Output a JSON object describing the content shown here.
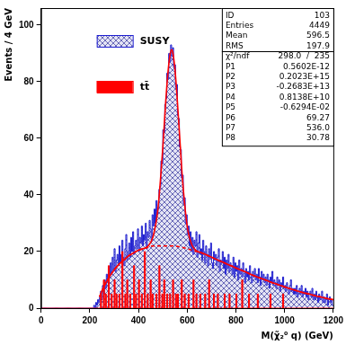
{
  "chart_data": {
    "type": "histogram",
    "x_label": "M(χ̃₂⁰ q) (GeV)",
    "y_label": "Events / 4 GeV",
    "xlim": [
      0,
      1200
    ],
    "xticks": [
      0,
      200,
      400,
      600,
      800,
      1000,
      1200
    ],
    "ylim": [
      0,
      106
    ],
    "yticks": [
      0,
      20,
      40,
      60,
      80,
      100
    ],
    "grid": false,
    "legend": "upper left",
    "bins": [
      0,
      4,
      8,
      12,
      16,
      20,
      24,
      28,
      32,
      36,
      40,
      44,
      48,
      52,
      56,
      60,
      64,
      68,
      72,
      76,
      80,
      84,
      88,
      92,
      96,
      100,
      104,
      108,
      112,
      116,
      120,
      124,
      128,
      132,
      136,
      140,
      144,
      148,
      152,
      156,
      160,
      164,
      168,
      172,
      176,
      180,
      184,
      188,
      192,
      196,
      200,
      204,
      208,
      212,
      216,
      220,
      224,
      228,
      232,
      236,
      240,
      244,
      248,
      252,
      256,
      260,
      264,
      268,
      272,
      276,
      280,
      284,
      288,
      292,
      296,
      300,
      304,
      308,
      312,
      316,
      320,
      324,
      328,
      332,
      336,
      340,
      344,
      348,
      352,
      356,
      360,
      364,
      368,
      372,
      376,
      380,
      384,
      388,
      392,
      396,
      400,
      404,
      408,
      412,
      416,
      420,
      424,
      428,
      432,
      436,
      440,
      444,
      448,
      452,
      456,
      460,
      464,
      468,
      472,
      476,
      480,
      484,
      488,
      492,
      496,
      500,
      504,
      508,
      512,
      516,
      520,
      524,
      528,
      532,
      536,
      540,
      544,
      548,
      552,
      556,
      560,
      564,
      568,
      572,
      576,
      580,
      584,
      588,
      592,
      596,
      600,
      604,
      608,
      612,
      616,
      620,
      624,
      628,
      632,
      636,
      640,
      644,
      648,
      652,
      656,
      660,
      664,
      668,
      672,
      676,
      680,
      684,
      688,
      692,
      696,
      700,
      704,
      708,
      712,
      716,
      720,
      724,
      728,
      732,
      736,
      740,
      744,
      748,
      752,
      756,
      760,
      764,
      768,
      772,
      776,
      780,
      784,
      788,
      792,
      796,
      800,
      804,
      808,
      812,
      816,
      820,
      824,
      828,
      832,
      836,
      840,
      844,
      848,
      852,
      856,
      860,
      864,
      868,
      872,
      876,
      880,
      884,
      888,
      892,
      896,
      900,
      904,
      908,
      912,
      916,
      920,
      924,
      928,
      932,
      936,
      940,
      944,
      948,
      952,
      956,
      960,
      964,
      968,
      972,
      976,
      980,
      984,
      988,
      992,
      996,
      1000,
      1004,
      1008,
      1012,
      1016,
      1020,
      1024,
      1028,
      1032,
      1036,
      1040,
      1044,
      1048,
      1052,
      1056,
      1060,
      1064,
      1068,
      1072,
      1076,
      1080,
      1084,
      1088,
      1092,
      1096,
      1100,
      1104,
      1108,
      1112,
      1116,
      1120,
      1124,
      1128,
      1132,
      1136,
      1140,
      1144,
      1148,
      1152,
      1156,
      1160,
      1164,
      1168,
      1172,
      1176,
      1180,
      1184,
      1188,
      1192,
      1196,
      1200
    ],
    "series": [
      {
        "name": "SUSY",
        "type": "histogram",
        "color": "#1f1fd0",
        "values": [
          0,
          0,
          0,
          0,
          0,
          0,
          0,
          0,
          0,
          0,
          0,
          0,
          0,
          0,
          0,
          0,
          0,
          0,
          0,
          0,
          0,
          0,
          0,
          0,
          0,
          0,
          0,
          0,
          0,
          0,
          0,
          0,
          0,
          0,
          0,
          0,
          0,
          0,
          0,
          0,
          0,
          0,
          0,
          0,
          0,
          0,
          0,
          0,
          0,
          0,
          0,
          0,
          0,
          0,
          1,
          0,
          2,
          1,
          3,
          2,
          4,
          6,
          3,
          8,
          5,
          10,
          7,
          12,
          9,
          14,
          11,
          16,
          12,
          18,
          14,
          21,
          13,
          17,
          19,
          15,
          22,
          16,
          19,
          24,
          18,
          15,
          21,
          26,
          17,
          20,
          23,
          18,
          25,
          20,
          27,
          19,
          22,
          24,
          21,
          28,
          20,
          25,
          23,
          29,
          22,
          26,
          24,
          30,
          21,
          27,
          25,
          31,
          28,
          24,
          33,
          29,
          35,
          30,
          38,
          33,
          35,
          42,
          43,
          52,
          51,
          63,
          62,
          72,
          74,
          83,
          81,
          90,
          87,
          93,
          89,
          92,
          85,
          86,
          78,
          79,
          68,
          67,
          57,
          56,
          46,
          47,
          37,
          39,
          30,
          33,
          26,
          29,
          22,
          27,
          20,
          25,
          19,
          24,
          22,
          27,
          18,
          23,
          26,
          19,
          21,
          17,
          24,
          20,
          16,
          22,
          19,
          15,
          21,
          18,
          23,
          16,
          14,
          20,
          17,
          19,
          15,
          18,
          21,
          13,
          17,
          16,
          20,
          14,
          18,
          12,
          17,
          14,
          19,
          13,
          16,
          15,
          12,
          18,
          11,
          16,
          13,
          15,
          10,
          17,
          12,
          14,
          11,
          16,
          13,
          9,
          14,
          11,
          13,
          10,
          15,
          12,
          9,
          13,
          11,
          14,
          10,
          12,
          9,
          14,
          11,
          8,
          13,
          10,
          12,
          9,
          11,
          8,
          12,
          10,
          7,
          11,
          9,
          13,
          8,
          10,
          9,
          7,
          11,
          8,
          10,
          6,
          9,
          8,
          11,
          7,
          8,
          6,
          9,
          7,
          5,
          8,
          10,
          6,
          7,
          5,
          7,
          5,
          8,
          4,
          6,
          7,
          5,
          8,
          4,
          6,
          5,
          7,
          4,
          6,
          3,
          5,
          6,
          4,
          7,
          3,
          5,
          3,
          6,
          4,
          2,
          5,
          3,
          4,
          6,
          2,
          4,
          2,
          3,
          5,
          1,
          3,
          4,
          2,
          3,
          1
        ]
      },
      {
        "name": "tt̄",
        "type": "histogram",
        "color": "#ff0000",
        "values": [
          0,
          0,
          0,
          0,
          0,
          0,
          0,
          0,
          0,
          0,
          0,
          0,
          0,
          0,
          0,
          0,
          0,
          0,
          0,
          0,
          0,
          0,
          0,
          0,
          0,
          0,
          0,
          0,
          0,
          0,
          0,
          0,
          0,
          0,
          0,
          0,
          0,
          0,
          0,
          0,
          0,
          0,
          0,
          0,
          0,
          0,
          0,
          0,
          0,
          0,
          0,
          0,
          0,
          0,
          0,
          0,
          0,
          0,
          0,
          0,
          0,
          5,
          0,
          0,
          10,
          0,
          5,
          0,
          0,
          15,
          0,
          0,
          5,
          0,
          0,
          10,
          0,
          5,
          0,
          0,
          5,
          0,
          0,
          20,
          0,
          0,
          5,
          0,
          10,
          0,
          0,
          5,
          0,
          0,
          0,
          15,
          0,
          5,
          0,
          0,
          10,
          0,
          0,
          5,
          0,
          0,
          20,
          0,
          0,
          5,
          0,
          0,
          10,
          0,
          5,
          0,
          0,
          0,
          5,
          0,
          0,
          15,
          0,
          0,
          5,
          0,
          10,
          0,
          0,
          5,
          0,
          0,
          5,
          0,
          0,
          10,
          0,
          0,
          5,
          0,
          5,
          0,
          0,
          0,
          10,
          0,
          0,
          5,
          0,
          0,
          0,
          5,
          0,
          0,
          0,
          0,
          10,
          0,
          0,
          5,
          0,
          0,
          0,
          5,
          0,
          0,
          0,
          0,
          5,
          0,
          0,
          0,
          10,
          0,
          0,
          0,
          0,
          5,
          0,
          0,
          0,
          5,
          0,
          0,
          0,
          0,
          0,
          0,
          5,
          0,
          0,
          0,
          0,
          5,
          0,
          0,
          0,
          0,
          0,
          0,
          5,
          0,
          0,
          0,
          0,
          0,
          10,
          0,
          0,
          0,
          0,
          0,
          0,
          5,
          0,
          0,
          0,
          0,
          0,
          0,
          0,
          0,
          5,
          0,
          0,
          0,
          0,
          0,
          0,
          0,
          0,
          0,
          0,
          0,
          0,
          5,
          0,
          0,
          0,
          0,
          0,
          0,
          0,
          0,
          0,
          0,
          0,
          0,
          5,
          0,
          0,
          0,
          0,
          0,
          0,
          0,
          0,
          0,
          0,
          0,
          0,
          0,
          0,
          0,
          0,
          0,
          0,
          0,
          0,
          0,
          0,
          0,
          0,
          0,
          0,
          0,
          0,
          0,
          0,
          0,
          0,
          0,
          0,
          0,
          0,
          0,
          0,
          0,
          0,
          0,
          0,
          0,
          0,
          0,
          0,
          0,
          0,
          0,
          0,
          0
        ]
      },
      {
        "type": "line",
        "color": "#ff0000",
        "line_style": "solid",
        "x": [
          240,
          260,
          280,
          300,
          320,
          340,
          360,
          380,
          400,
          420,
          440,
          460,
          480,
          500,
          510,
          520,
          530,
          536,
          540,
          550,
          560,
          570,
          580,
          600,
          620,
          640,
          660,
          680,
          700,
          720,
          740,
          760,
          780,
          800,
          820,
          840,
          860,
          880,
          900,
          920,
          940,
          960,
          980,
          1000,
          1020,
          1040,
          1060,
          1080,
          1100,
          1120,
          1140,
          1160,
          1180,
          1200
        ],
        "values": [
          4,
          8,
          11,
          13.5,
          15.5,
          17,
          18.5,
          19.5,
          20.5,
          21,
          22,
          25.3,
          35.2,
          56.9,
          70.4,
          82.3,
          89.7,
          91.3,
          90.7,
          84.2,
          72.7,
          59.5,
          46.4,
          29,
          22.2,
          20.2,
          19.5,
          18.8,
          18,
          17.2,
          16.5,
          15.7,
          15,
          14.2,
          13.5,
          12.8,
          12,
          11.3,
          10.6,
          10,
          9.3,
          8.7,
          8.1,
          7.5,
          7,
          6.4,
          5.9,
          5.4,
          5,
          4.5,
          4.1,
          3.7,
          3.3,
          3
        ]
      },
      {
        "type": "line",
        "color": "#ff0000",
        "line_style": "dashed",
        "x": [
          240,
          260,
          280,
          300,
          320,
          340,
          360,
          380,
          400,
          420,
          440,
          460,
          480,
          500,
          520,
          540,
          560,
          580,
          600,
          620,
          640,
          660,
          680,
          700,
          720,
          740,
          760,
          780,
          800,
          820,
          840,
          860,
          880,
          900,
          920,
          940,
          960,
          980,
          1000,
          1020,
          1040,
          1060,
          1080,
          1100,
          1120,
          1140,
          1160,
          1180,
          1200
        ],
        "values": [
          4,
          8,
          11,
          13.5,
          15.5,
          17,
          18.5,
          19.5,
          20.5,
          21,
          21.5,
          22,
          22,
          22,
          22,
          22,
          21.8,
          21.5,
          21,
          20.5,
          20,
          19.5,
          18.8,
          18,
          17.2,
          16.5,
          15.7,
          15,
          14.2,
          13.5,
          12.8,
          12,
          11.3,
          10.6,
          10,
          9.3,
          8.7,
          8.1,
          7.5,
          7,
          6.4,
          5.9,
          5.4,
          5,
          4.5,
          4.1,
          3.7,
          3.3,
          3
        ]
      }
    ],
    "stats_box": [
      [
        [
          "ID",
          "103"
        ],
        [
          "Entries",
          "4449"
        ],
        [
          "Mean",
          "596.5"
        ],
        [
          "RMS",
          "197.9"
        ]
      ],
      [
        [
          "χ²/ndf",
          "298.0  /  235"
        ],
        [
          "P1",
          "0.5602E-12"
        ],
        [
          "P2",
          "0.2023E+15"
        ],
        [
          "P3",
          "-0.2683E+13"
        ],
        [
          "P4",
          "0.8138E+10"
        ],
        [
          "P5",
          "-0.6294E-02"
        ],
        [
          "P6",
          "69.27"
        ],
        [
          "P7",
          "536.0"
        ],
        [
          "P8",
          "30.78"
        ]
      ]
    ]
  }
}
